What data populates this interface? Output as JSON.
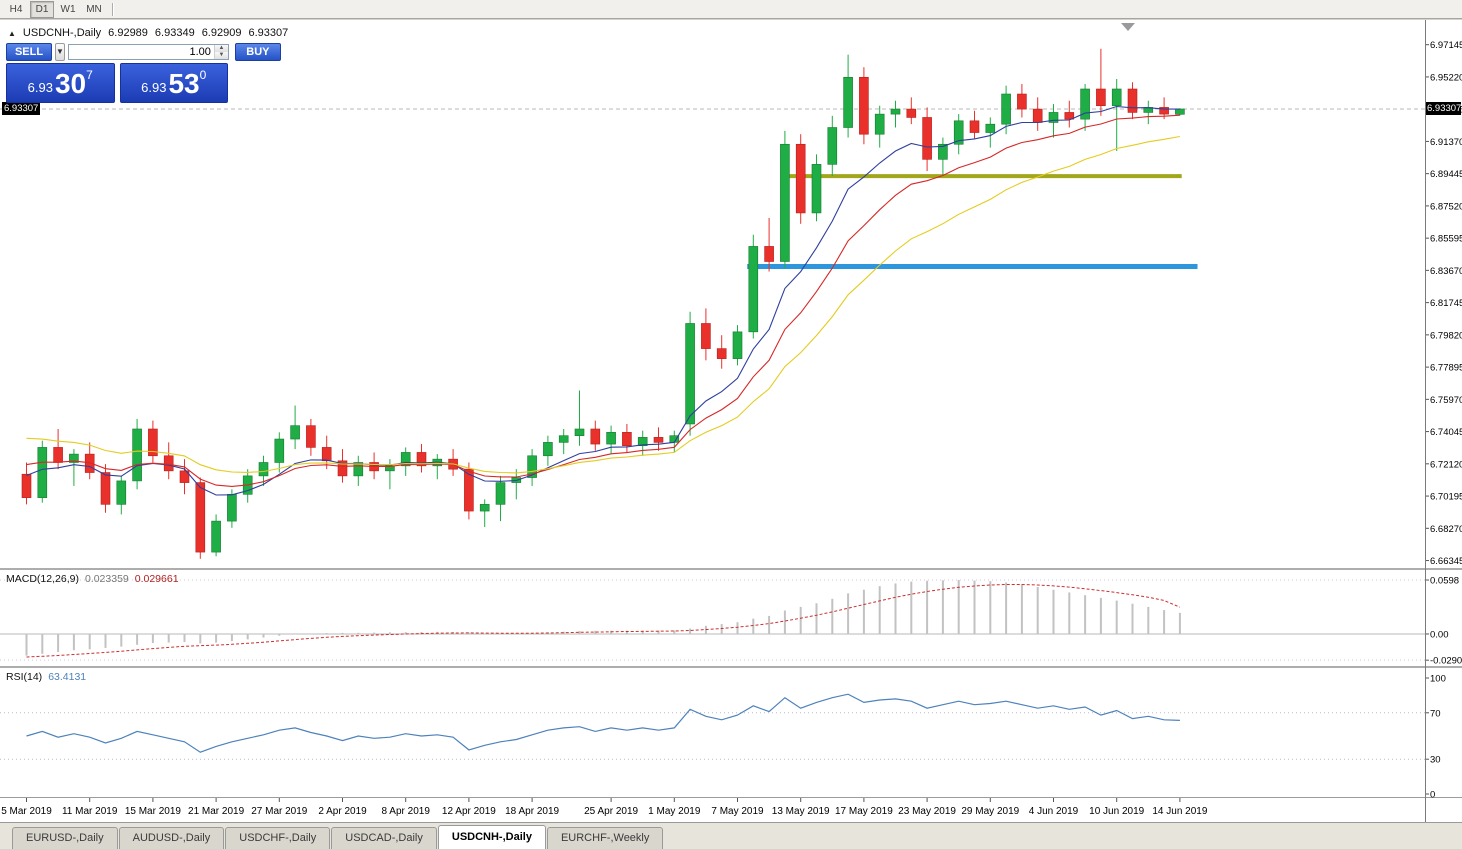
{
  "toolbar": {
    "timeframes": [
      {
        "label": "H4"
      },
      {
        "label": "D1"
      },
      {
        "label": "W1"
      },
      {
        "label": "MN"
      }
    ]
  },
  "header": {
    "arrow": "▲",
    "symbol": "USDCNH-,Daily",
    "open": "6.92989",
    "high": "6.93349",
    "low": "6.92909",
    "close": "6.93307"
  },
  "trade_widget": {
    "sell_label": "SELL",
    "buy_label": "BUY",
    "volume": "1.00",
    "bid": {
      "prefix": "6.93",
      "big": "30",
      "sup": "7"
    },
    "ask": {
      "prefix": "6.93",
      "big": "53",
      "sup": "0"
    }
  },
  "price_badge": "6.93307",
  "indicators": {
    "macd_label": "MACD(12,26,9)",
    "macd_value": "0.023359",
    "macd_signal_value": "0.029661",
    "macd_axis": [
      "0.0598",
      "0.00",
      "-0.029049"
    ],
    "rsi_label": "RSI(14)",
    "rsi_value": "63.4131",
    "rsi_axis": [
      "100",
      "70",
      "30",
      "0"
    ]
  },
  "tabs": [
    {
      "label": "EURUSD-,Daily"
    },
    {
      "label": "AUDUSD-,Daily"
    },
    {
      "label": "USDCHF-,Daily"
    },
    {
      "label": "USDCAD-,Daily"
    },
    {
      "label": "USDCNH-,Daily"
    },
    {
      "label": "EURCHF-,Weekly"
    }
  ],
  "chart_data": {
    "type": "candlestick",
    "symbol": "USDCNH-",
    "timeframe": "Daily",
    "current_price": 6.93307,
    "y_range": {
      "top": 6.985,
      "bottom": 6.659
    },
    "price_axis_labels": [
      "6.97145",
      "6.95220",
      "6.93295",
      "6.91370",
      "6.89445",
      "6.87520",
      "6.85595",
      "6.83670",
      "6.81745",
      "6.79820",
      "6.77895",
      "6.75970",
      "6.74045",
      "6.72120",
      "6.70195",
      "6.68270",
      "6.66345"
    ],
    "candles": [
      [
        6.715,
        6.722,
        6.697,
        6.701
      ],
      [
        6.701,
        6.735,
        6.698,
        6.731
      ],
      [
        6.731,
        6.742,
        6.718,
        6.722
      ],
      [
        6.722,
        6.73,
        6.708,
        6.727
      ],
      [
        6.727,
        6.734,
        6.712,
        6.716
      ],
      [
        6.716,
        6.721,
        6.692,
        6.697
      ],
      [
        6.697,
        6.714,
        6.691,
        6.711
      ],
      [
        6.711,
        6.748,
        6.706,
        6.742
      ],
      [
        6.742,
        6.747,
        6.722,
        6.726
      ],
      [
        6.726,
        6.734,
        6.712,
        6.717
      ],
      [
        6.717,
        6.724,
        6.703,
        6.71
      ],
      [
        6.71,
        6.713,
        6.6645,
        6.6685
      ],
      [
        6.6685,
        6.691,
        6.666,
        6.687
      ],
      [
        6.687,
        6.706,
        6.683,
        6.703
      ],
      [
        6.703,
        6.718,
        6.698,
        6.714
      ],
      [
        6.714,
        6.726,
        6.708,
        6.722
      ],
      [
        6.722,
        6.74,
        6.716,
        6.736
      ],
      [
        6.736,
        6.756,
        6.73,
        6.744
      ],
      [
        6.744,
        6.748,
        6.726,
        6.731
      ],
      [
        6.731,
        6.738,
        6.718,
        6.723
      ],
      [
        6.723,
        6.73,
        6.71,
        6.714
      ],
      [
        6.714,
        6.726,
        6.708,
        6.722
      ],
      [
        6.722,
        6.728,
        6.712,
        6.717
      ],
      [
        6.717,
        6.724,
        6.706,
        6.72
      ],
      [
        6.72,
        6.731,
        6.714,
        6.728
      ],
      [
        6.728,
        6.733,
        6.716,
        6.72
      ],
      [
        6.72,
        6.727,
        6.712,
        6.724
      ],
      [
        6.724,
        6.73,
        6.714,
        6.718
      ],
      [
        6.718,
        6.722,
        6.688,
        6.693
      ],
      [
        6.693,
        6.7,
        6.6835,
        6.697
      ],
      [
        6.697,
        6.714,
        6.687,
        6.71
      ],
      [
        6.71,
        6.718,
        6.7,
        6.713
      ],
      [
        6.713,
        6.73,
        6.708,
        6.726
      ],
      [
        6.726,
        6.738,
        6.72,
        6.734
      ],
      [
        6.734,
        6.742,
        6.727,
        6.738
      ],
      [
        6.738,
        6.765,
        6.732,
        6.742
      ],
      [
        6.742,
        6.747,
        6.729,
        6.733
      ],
      [
        6.733,
        6.744,
        6.727,
        6.74
      ],
      [
        6.74,
        6.745,
        6.728,
        6.732
      ],
      [
        6.732,
        6.741,
        6.726,
        6.737
      ],
      [
        6.737,
        6.743,
        6.729,
        6.734
      ],
      [
        6.734,
        6.741,
        6.728,
        6.738
      ],
      [
        6.745,
        6.812,
        6.738,
        6.805
      ],
      [
        6.805,
        6.814,
        6.783,
        6.79
      ],
      [
        6.79,
        6.798,
        6.778,
        6.784
      ],
      [
        6.784,
        6.804,
        6.78,
        6.8
      ],
      [
        6.8,
        6.858,
        6.796,
        6.851
      ],
      [
        6.851,
        6.868,
        6.836,
        6.842
      ],
      [
        6.842,
        6.92,
        6.838,
        6.912
      ],
      [
        6.912,
        6.918,
        6.8645,
        6.871
      ],
      [
        6.871,
        6.906,
        6.866,
        6.9
      ],
      [
        6.9,
        6.929,
        6.893,
        6.922
      ],
      [
        6.922,
        6.9655,
        6.916,
        6.952
      ],
      [
        6.952,
        6.958,
        6.912,
        6.918
      ],
      [
        6.918,
        6.935,
        6.91,
        6.93
      ],
      [
        6.93,
        6.938,
        6.922,
        6.933
      ],
      [
        6.933,
        6.94,
        6.924,
        6.928
      ],
      [
        6.928,
        6.934,
        6.896,
        6.903
      ],
      [
        6.903,
        6.916,
        6.893,
        6.912
      ],
      [
        6.912,
        6.93,
        6.906,
        6.926
      ],
      [
        6.926,
        6.932,
        6.915,
        6.919
      ],
      [
        6.919,
        6.928,
        6.91,
        6.924
      ],
      [
        6.924,
        6.947,
        6.918,
        6.942
      ],
      [
        6.942,
        6.948,
        6.928,
        6.933
      ],
      [
        6.933,
        6.94,
        6.92,
        6.925
      ],
      [
        6.925,
        6.936,
        6.916,
        6.931
      ],
      [
        6.931,
        6.938,
        6.922,
        6.927
      ],
      [
        6.927,
        6.948,
        6.92,
        6.945
      ],
      [
        6.945,
        6.969,
        6.929,
        6.935
      ],
      [
        6.935,
        6.951,
        6.908,
        6.945
      ],
      [
        6.945,
        6.949,
        6.927,
        6.931
      ],
      [
        6.931,
        6.938,
        6.924,
        6.934
      ],
      [
        6.934,
        6.94,
        6.927,
        6.93
      ],
      [
        6.92989,
        6.93349,
        6.92909,
        6.93307
      ]
    ],
    "date_labels": [
      {
        "i": 0,
        "label": "5 Mar 2019"
      },
      {
        "i": 4,
        "label": "11 Mar 2019"
      },
      {
        "i": 8,
        "label": "15 Mar 2019"
      },
      {
        "i": 12,
        "label": "21 Mar 2019"
      },
      {
        "i": 16,
        "label": "27 Mar 2019"
      },
      {
        "i": 20,
        "label": "2 Apr 2019"
      },
      {
        "i": 24,
        "label": "8 Apr 2019"
      },
      {
        "i": 28,
        "label": "12 Apr 2019"
      },
      {
        "i": 32,
        "label": "18 Apr 2019"
      },
      {
        "i": 37,
        "label": "25 Apr 2019"
      },
      {
        "i": 41,
        "label": "1 May 2019"
      },
      {
        "i": 45,
        "label": "7 May 2019"
      },
      {
        "i": 49,
        "label": "13 May 2019"
      },
      {
        "i": 53,
        "label": "17 May 2019"
      },
      {
        "i": 57,
        "label": "23 May 2019"
      },
      {
        "i": 61,
        "label": "29 May 2019"
      },
      {
        "i": 65,
        "label": "4 Jun 2019"
      },
      {
        "i": 69,
        "label": "10 Jun 2019"
      },
      {
        "i": 73,
        "label": "14 Jun 2019"
      }
    ],
    "moving_averages": [
      {
        "period": 8,
        "seed": 6.718,
        "color": "#2f3f9e"
      },
      {
        "period": 13,
        "seed": 6.724,
        "color": "#d62828"
      },
      {
        "period": 21,
        "seed": 6.74,
        "color": "#e3cc1f"
      }
    ],
    "trend_lines": [
      {
        "price": 6.893,
        "i1": 48.3,
        "i2": 73.4,
        "color": "#a2a61b",
        "width": 4
      },
      {
        "price": 6.839,
        "i1": 45.9,
        "i2": 74.4,
        "color": "#2d96dc",
        "width": 5
      }
    ],
    "colors": {
      "up": "#1fae45",
      "up_border": "#157a30",
      "down": "#e9302a",
      "down_border": "#b3201c",
      "macd_bar": "#c2c2c2",
      "macd_signal": "#cd2f2f",
      "rsi_line": "#4d82bc"
    },
    "macd": {
      "params": "12,26,9",
      "y_top": 0.0709,
      "y_bottom": -0.0355,
      "gridlines": [
        0.0598,
        0,
        -0.029049
      ],
      "hist": [
        -0.024,
        -0.022,
        -0.02,
        -0.018,
        -0.017,
        -0.0155,
        -0.014,
        -0.012,
        -0.01,
        -0.0095,
        -0.009,
        -0.0105,
        -0.0095,
        -0.008,
        -0.006,
        -0.004,
        -0.002,
        -0.0005,
        0.0005,
        0.001,
        0.0012,
        0.0013,
        0.0015,
        0.0018,
        0.002,
        0.0022,
        0.0023,
        0.0022,
        0.0015,
        0.0005,
        0.0002,
        0.0005,
        0.001,
        0.0018,
        0.0025,
        0.0032,
        0.0035,
        0.0036,
        0.0037,
        0.0038,
        0.0038,
        0.0039,
        0.006,
        0.009,
        0.011,
        0.013,
        0.017,
        0.02,
        0.026,
        0.03,
        0.034,
        0.039,
        0.045,
        0.049,
        0.053,
        0.056,
        0.058,
        0.059,
        0.0595,
        0.0598,
        0.0592,
        0.0585,
        0.057,
        0.055,
        0.052,
        0.049,
        0.046,
        0.043,
        0.04,
        0.037,
        0.0335,
        0.03,
        0.0265,
        0.023359
      ],
      "signal": [
        -0.0255,
        -0.0248,
        -0.0239,
        -0.0228,
        -0.0216,
        -0.0204,
        -0.0191,
        -0.0177,
        -0.0162,
        -0.0149,
        -0.0137,
        -0.013,
        -0.0123,
        -0.0114,
        -0.0103,
        -0.0091,
        -0.0077,
        -0.0062,
        -0.0049,
        -0.0037,
        -0.0027,
        -0.0019,
        -0.0012,
        -0.0006,
        0,
        0.0004,
        0.0008,
        0.0011,
        0.0012,
        0.001,
        0.0008,
        0.0009,
        0.0009,
        0.0011,
        0.0014,
        0.0018,
        0.0021,
        0.0024,
        0.0027,
        0.0029,
        0.0031,
        0.0033,
        0.0038,
        0.0049,
        0.0061,
        0.0075,
        0.0094,
        0.0115,
        0.0144,
        0.0175,
        0.0208,
        0.0245,
        0.0286,
        0.0327,
        0.0367,
        0.0406,
        0.0441,
        0.0471,
        0.0496,
        0.0517,
        0.0532,
        0.0543,
        0.0548,
        0.0548,
        0.0543,
        0.0533,
        0.0519,
        0.0501,
        0.0481,
        0.0459,
        0.0434,
        0.0407,
        0.0371,
        0.029661
      ]
    },
    "rsi": {
      "period": 14,
      "levels": [
        70,
        30
      ],
      "values": [
        50,
        54,
        49,
        52,
        49,
        44,
        48,
        54,
        51,
        48,
        45,
        36,
        41,
        45,
        48,
        51,
        55,
        57,
        53,
        50,
        46,
        50,
        48,
        49,
        52,
        50,
        51,
        49,
        38,
        42,
        45,
        47,
        51,
        55,
        57,
        58,
        54,
        57,
        55,
        57,
        55,
        57,
        73,
        67,
        64,
        68,
        76,
        71,
        83,
        74,
        79,
        83,
        86,
        79,
        81,
        82,
        80,
        74,
        77,
        80,
        77,
        78,
        80,
        77,
        74,
        76,
        73,
        75,
        68,
        72,
        65,
        67,
        64,
        63.4131
      ]
    }
  }
}
